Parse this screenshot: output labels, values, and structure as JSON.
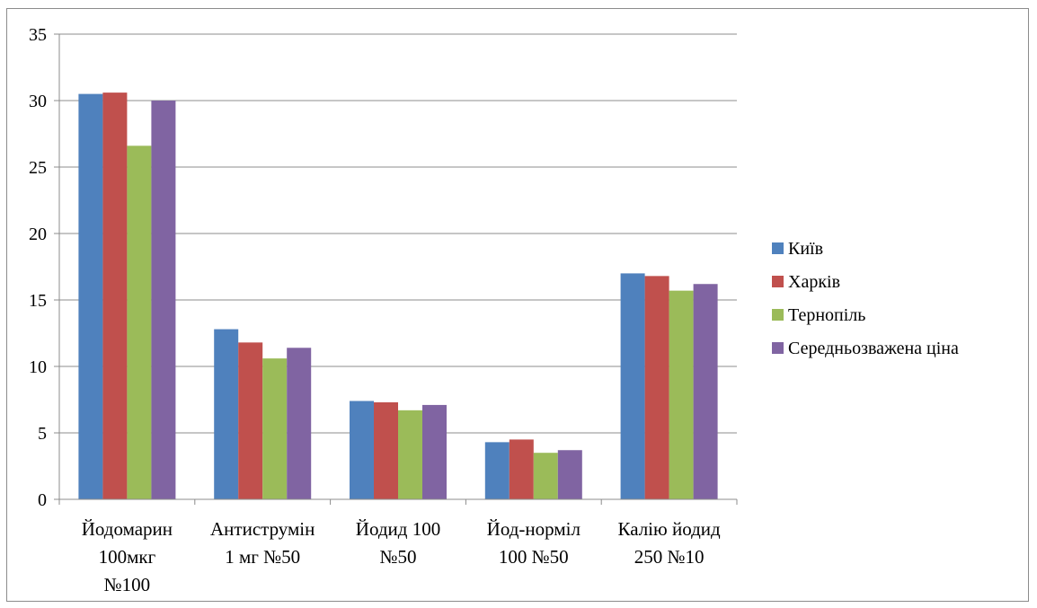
{
  "chart_data": {
    "type": "bar",
    "categories": [
      [
        "Йодомарин",
        "100мкг",
        "№100"
      ],
      [
        "Антиструмін",
        "1 мг №50"
      ],
      [
        "Йодид 100",
        "№50"
      ],
      [
        "Йод-норміл",
        "100 №50"
      ],
      [
        "Калію йодид",
        "250 №10"
      ]
    ],
    "series": [
      {
        "name": "Київ",
        "color": "#4f81bd",
        "values": [
          30.5,
          12.8,
          7.4,
          4.3,
          17.0
        ]
      },
      {
        "name": "Харків",
        "color": "#c0504d",
        "values": [
          30.6,
          11.8,
          7.3,
          4.5,
          16.8
        ]
      },
      {
        "name": "Тернопіль",
        "color": "#9bbb59",
        "values": [
          26.6,
          10.6,
          6.7,
          3.5,
          15.7
        ]
      },
      {
        "name": "Середньозважена ціна",
        "color": "#8064a2",
        "values": [
          30.0,
          11.4,
          7.1,
          3.7,
          16.2
        ]
      }
    ],
    "ylim": [
      0,
      35
    ],
    "yticks": [
      "0",
      "5",
      "10",
      "15",
      "20",
      "25",
      "30",
      "35"
    ],
    "grid": true,
    "legend": "right"
  }
}
